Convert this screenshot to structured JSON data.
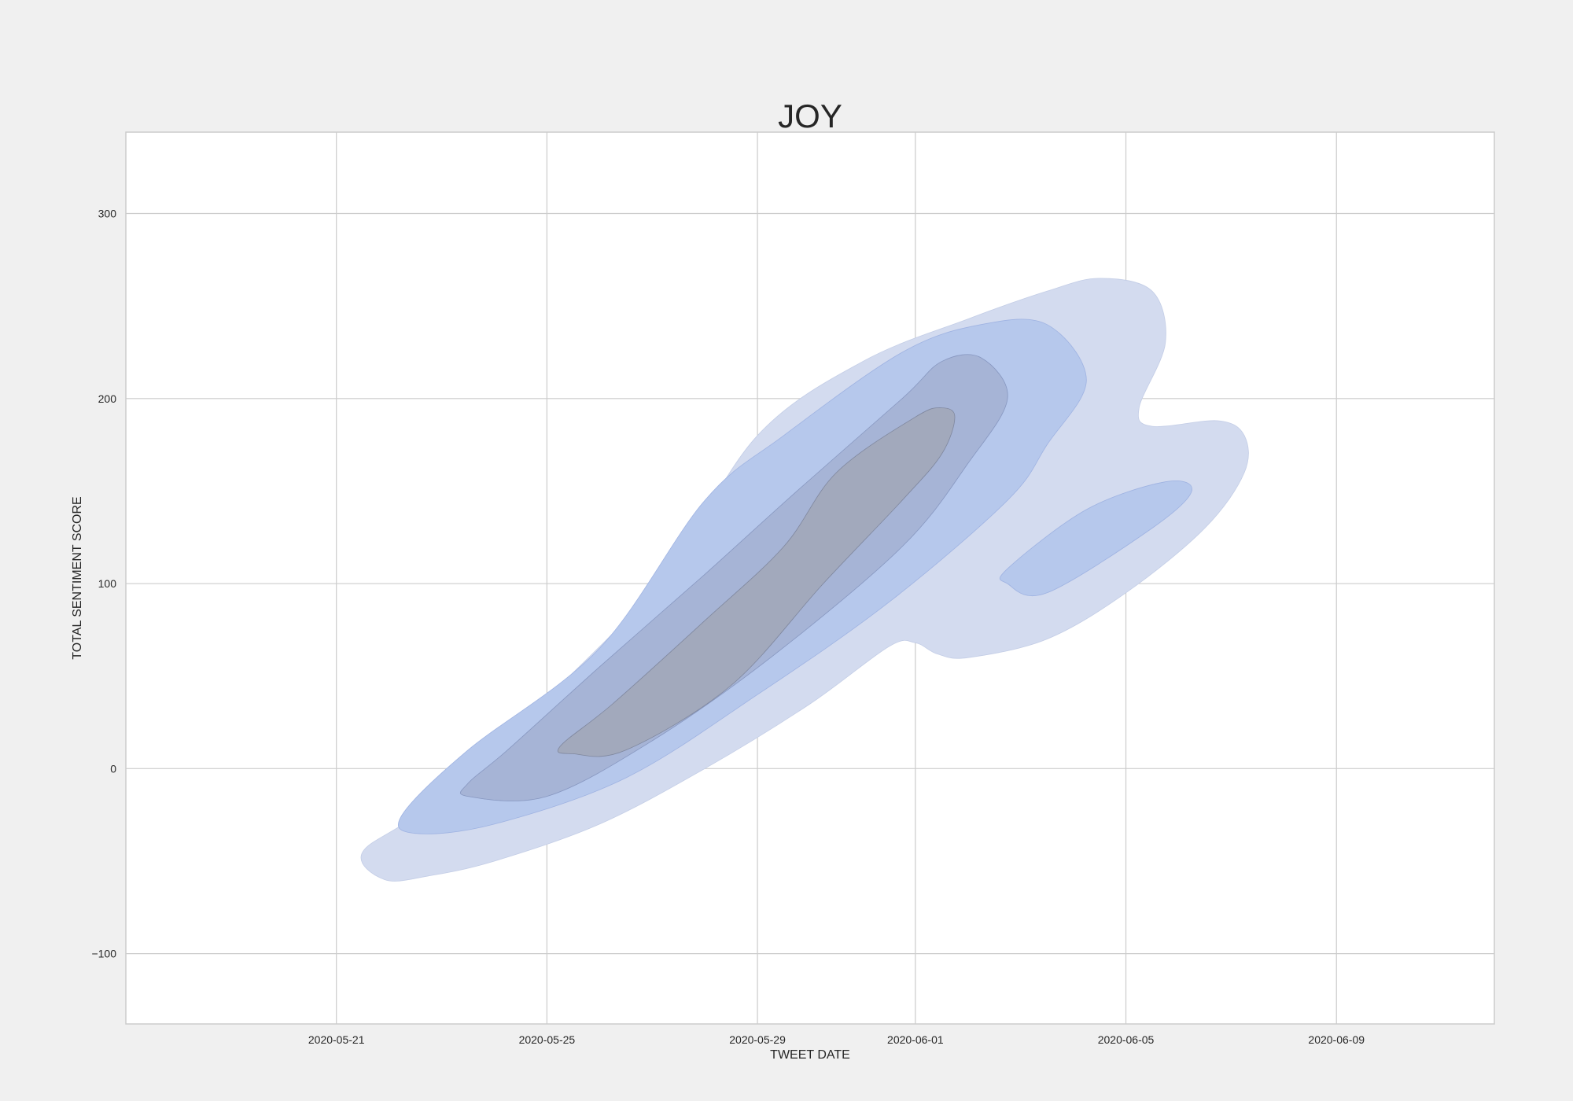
{
  "chart_data": {
    "type": "contour",
    "title": "JOY",
    "xlabel": "TWEET DATE",
    "ylabel": "TOTAL SENTIMENT SCORE",
    "x_type": "date",
    "xlim": [
      "2020-05-17",
      "2020-06-12"
    ],
    "ylim": [
      -138,
      344
    ],
    "x_ticks": [
      "2020-05-21",
      "2020-05-25",
      "2020-05-29",
      "2020-06-01",
      "2020-06-05",
      "2020-06-09"
    ],
    "y_ticks": [
      -100,
      0,
      100,
      200,
      300
    ],
    "grid": true,
    "colors": {
      "figure_background": "#f0f0f0",
      "plot_background": "#ffffff",
      "level_1": "#d3dbef",
      "level_2": "#b6c8ec",
      "level_3": "#a6b4d6",
      "level_4": "#a2a9bc"
    },
    "series": [
      {
        "level": 1,
        "regions": [
          [
            [
              "2020-05-21T22:00",
              -60
            ],
            [
              "2020-05-22T18:00",
              -58
            ],
            [
              "2020-05-24T00:00",
              -50
            ],
            [
              "2020-05-26T00:00",
              -30
            ],
            [
              "2020-05-28T00:00",
              0
            ],
            [
              "2020-05-30T00:00",
              35
            ],
            [
              "2020-05-31T12:00",
              66
            ],
            [
              "2020-06-01T00:00",
              68
            ],
            [
              "2020-06-01T10:00",
              62
            ],
            [
              "2020-06-02T00:00",
              60
            ],
            [
              "2020-06-03T12:00",
              70
            ],
            [
              "2020-06-05T00:00",
              95
            ],
            [
              "2020-06-06T12:00",
              130
            ],
            [
              "2020-06-07T06:00",
              160
            ],
            [
              "2020-06-07T06:00",
              180
            ],
            [
              "2020-06-06T18:00",
              188
            ],
            [
              "2020-06-05T12:00",
              185
            ],
            [
              "2020-06-05T06:00",
              195
            ],
            [
              "2020-06-05T18:00",
              230
            ],
            [
              "2020-06-05T12:00",
              258
            ],
            [
              "2020-06-04T12:00",
              265
            ],
            [
              "2020-06-03T12:00",
              258
            ],
            [
              "2020-06-02T00:00",
              243
            ],
            [
              "2020-05-31T00:00",
              220
            ],
            [
              "2020-05-29T00:00",
              180
            ],
            [
              "2020-05-27T06:00",
              105
            ],
            [
              "2020-05-25T06:00",
              45
            ],
            [
              "2020-05-22T18:00",
              -20
            ],
            [
              "2020-05-21T12:00",
              -45
            ]
          ],
          [
            [
              "2020-06-02T18:00",
              100
            ],
            [
              "2020-06-03T12:00",
              95
            ],
            [
              "2020-06-05T12:00",
              130
            ],
            [
              "2020-06-06T06:00",
              150
            ],
            [
              "2020-06-05T18:00",
              155
            ],
            [
              "2020-06-04T06:00",
              140
            ],
            [
              "2020-06-02T18:00",
              108
            ]
          ]
        ]
      },
      {
        "level": 2,
        "regions": [
          [
            [
              "2020-05-22T12:00",
              -35
            ],
            [
              "2020-05-24T00:00",
              -30
            ],
            [
              "2020-05-26T12:00",
              -5
            ],
            [
              "2020-05-29T00:00",
              40
            ],
            [
              "2020-05-31T12:00",
              90
            ],
            [
              "2020-06-02T18:00",
              145
            ],
            [
              "2020-06-03T12:00",
              175
            ],
            [
              "2020-06-04T06:00",
              210
            ],
            [
              "2020-06-03T12:00",
              240
            ],
            [
              "2020-06-02T06:00",
              240
            ],
            [
              "2020-05-31T18:00",
              225
            ],
            [
              "2020-05-29T12:00",
              180
            ],
            [
              "2020-05-28T00:00",
              145
            ],
            [
              "2020-05-26T00:00",
              65
            ],
            [
              "2020-05-23T12:00",
              10
            ],
            [
              "2020-05-22T06:00",
              -25
            ]
          ],
          [
            [
              "2020-06-02T18:00",
              100
            ],
            [
              "2020-06-03T12:00",
              95
            ],
            [
              "2020-06-05T12:00",
              130
            ],
            [
              "2020-06-06T06:00",
              150
            ],
            [
              "2020-06-05T18:00",
              155
            ],
            [
              "2020-06-04T06:00",
              140
            ],
            [
              "2020-06-02T18:00",
              108
            ]
          ]
        ]
      },
      {
        "level": 3,
        "regions": [
          [
            [
              "2020-05-23T12:00",
              -15
            ],
            [
              "2020-05-25T00:00",
              -15
            ],
            [
              "2020-05-27T00:00",
              15
            ],
            [
              "2020-05-29T06:00",
              60
            ],
            [
              "2020-05-31T18:00",
              120
            ],
            [
              "2020-06-02T00:00",
              165
            ],
            [
              "2020-06-02T18:00",
              200
            ],
            [
              "2020-06-02T06:00",
              222
            ],
            [
              "2020-06-01T12:00",
              220
            ],
            [
              "2020-05-31T18:00",
              200
            ],
            [
              "2020-05-29T18:00",
              150
            ],
            [
              "2020-05-28T00:00",
              105
            ],
            [
              "2020-05-26T00:00",
              55
            ],
            [
              "2020-05-24T06:00",
              10
            ],
            [
              "2020-05-23T12:00",
              -8
            ]
          ]
        ]
      },
      {
        "level": 4,
        "regions": [
          [
            [
              "2020-05-25T12:00",
              8
            ],
            [
              "2020-05-26T12:00",
              10
            ],
            [
              "2020-05-28T12:00",
              45
            ],
            [
              "2020-05-30T06:00",
              100
            ],
            [
              "2020-05-31T18:00",
              145
            ],
            [
              "2020-06-01T12:00",
              170
            ],
            [
              "2020-06-01T18:00",
              190
            ],
            [
              "2020-06-01T12:00",
              195
            ],
            [
              "2020-06-01T00:00",
              190
            ],
            [
              "2020-05-30T12:00",
              160
            ],
            [
              "2020-05-29T12:00",
              120
            ],
            [
              "2020-05-28T00:00",
              80
            ],
            [
              "2020-05-26T06:00",
              35
            ],
            [
              "2020-05-25T06:00",
              12
            ]
          ]
        ]
      }
    ]
  }
}
